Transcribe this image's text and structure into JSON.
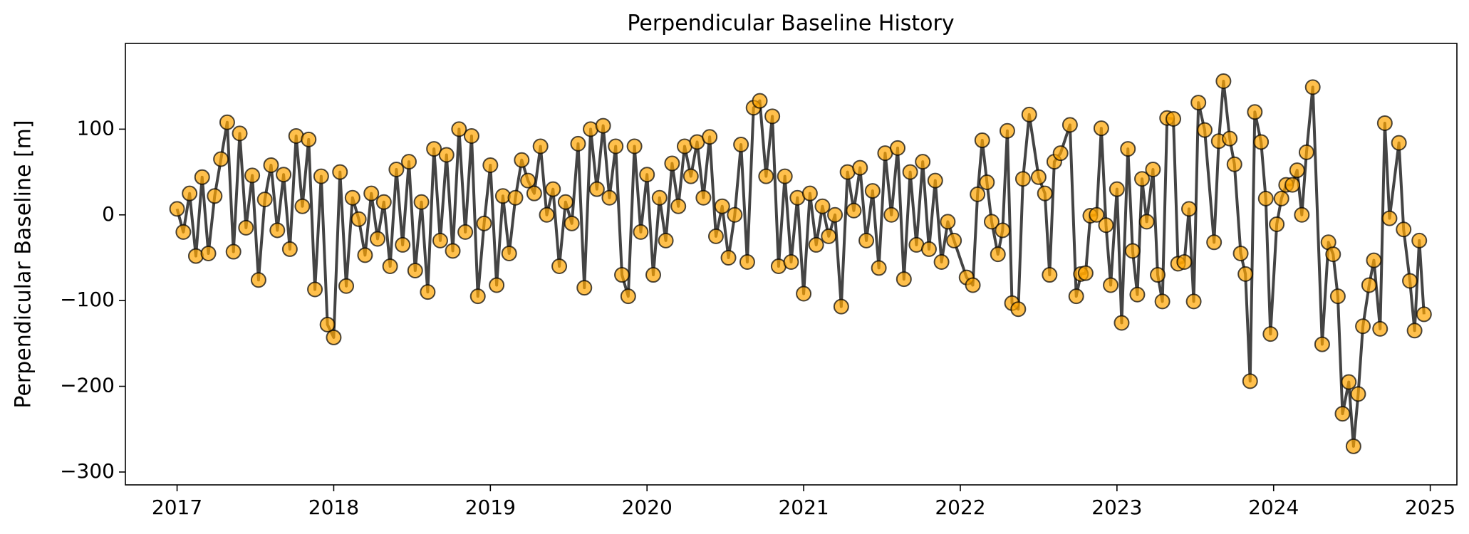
{
  "chart_data": {
    "type": "line",
    "title": "Perpendicular Baseline History",
    "ylabel": "Perpendicular Baseline [m]",
    "color": "#ffa500",
    "line_color": "#444444",
    "edge_color": "#000000",
    "xlim": [
      2016.67,
      2025.17
    ],
    "xticks": [
      2017,
      2018,
      2019,
      2020,
      2021,
      2022,
      2023,
      2024,
      2025
    ],
    "ylim": [
      -315,
      200
    ],
    "yticks": [
      {
        "value": -300,
        "label": "−300"
      },
      {
        "value": -200,
        "label": "−200"
      },
      {
        "value": -100,
        "label": "−100"
      },
      0,
      100
    ],
    "x": [
      2017.0,
      2017.04,
      2017.08,
      2017.12,
      2017.16,
      2017.2,
      2017.24,
      2017.28,
      2017.32,
      2017.36,
      2017.4,
      2017.44,
      2017.48,
      2017.52,
      2017.56,
      2017.6,
      2017.64,
      2017.68,
      2017.72,
      2017.76,
      2017.8,
      2017.84,
      2017.88,
      2017.92,
      2017.96,
      2018.0,
      2018.04,
      2018.08,
      2018.12,
      2018.16,
      2018.2,
      2018.24,
      2018.28,
      2018.32,
      2018.36,
      2018.4,
      2018.44,
      2018.48,
      2018.52,
      2018.56,
      2018.6,
      2018.64,
      2018.68,
      2018.72,
      2018.76,
      2018.8,
      2018.84,
      2018.88,
      2018.92,
      2018.96,
      2019.0,
      2019.04,
      2019.08,
      2019.12,
      2019.16,
      2019.2,
      2019.24,
      2019.28,
      2019.32,
      2019.36,
      2019.4,
      2019.44,
      2019.48,
      2019.52,
      2019.56,
      2019.6,
      2019.64,
      2019.68,
      2019.72,
      2019.76,
      2019.8,
      2019.84,
      2019.88,
      2019.92,
      2019.96,
      2020.0,
      2020.04,
      2020.08,
      2020.12,
      2020.16,
      2020.2,
      2020.24,
      2020.28,
      2020.32,
      2020.36,
      2020.4,
      2020.44,
      2020.48,
      2020.52,
      2020.56,
      2020.6,
      2020.64,
      2020.68,
      2020.72,
      2020.76,
      2020.8,
      2020.84,
      2020.88,
      2020.92,
      2020.96,
      2021.0,
      2021.04,
      2021.08,
      2021.12,
      2021.16,
      2021.2,
      2021.24,
      2021.28,
      2021.32,
      2021.36,
      2021.4,
      2021.44,
      2021.48,
      2021.52,
      2021.56,
      2021.6,
      2021.64,
      2021.68,
      2021.72,
      2021.76,
      2021.8,
      2021.84,
      2021.88,
      2021.92,
      2021.96,
      2022.04,
      2022.08,
      2022.11,
      2022.14,
      2022.17,
      2022.2,
      2022.24,
      2022.27,
      2022.3,
      2022.33,
      2022.37,
      2022.4,
      2022.44,
      2022.5,
      2022.54,
      2022.57,
      2022.6,
      2022.64,
      2022.7,
      2022.74,
      2022.77,
      2022.8,
      2022.83,
      2022.87,
      2022.9,
      2022.93,
      2022.96,
      2023.0,
      2023.03,
      2023.07,
      2023.1,
      2023.13,
      2023.16,
      2023.19,
      2023.23,
      2023.26,
      2023.29,
      2023.32,
      2023.36,
      2023.39,
      2023.43,
      2023.46,
      2023.49,
      2023.52,
      2023.56,
      2023.62,
      2023.65,
      2023.68,
      2023.72,
      2023.75,
      2023.79,
      2023.82,
      2023.85,
      2023.88,
      2023.92,
      2023.95,
      2023.98,
      2024.02,
      2024.05,
      2024.08,
      2024.12,
      2024.15,
      2024.18,
      2024.21,
      2024.25,
      2024.31,
      2024.35,
      2024.38,
      2024.41,
      2024.44,
      2024.48,
      2024.51,
      2024.54,
      2024.57,
      2024.61,
      2024.64,
      2024.68,
      2024.71,
      2024.74,
      2024.8,
      2024.83,
      2024.87,
      2024.9,
      2024.93,
      2024.96
    ],
    "values": [
      7,
      -20,
      25,
      -48,
      44,
      -45,
      22,
      65,
      108,
      -43,
      95,
      -15,
      46,
      -76,
      18,
      58,
      -18,
      47,
      -40,
      92,
      10,
      88,
      -87,
      45,
      -128,
      -143,
      50,
      -83,
      20,
      -5,
      -47,
      25,
      -28,
      15,
      -60,
      53,
      -35,
      62,
      -65,
      15,
      -90,
      77,
      -30,
      70,
      -42,
      100,
      -20,
      92,
      -95,
      -10,
      58,
      -82,
      22,
      -45,
      20,
      64,
      40,
      25,
      80,
      0,
      30,
      -60,
      15,
      -10,
      83,
      -85,
      100,
      30,
      104,
      20,
      80,
      -70,
      -95,
      80,
      -20,
      47,
      -70,
      20,
      -30,
      60,
      10,
      80,
      45,
      85,
      20,
      91,
      -25,
      10,
      -50,
      0,
      82,
      -55,
      125,
      133,
      45,
      115,
      -60,
      45,
      -55,
      20,
      -92,
      25,
      -35,
      10,
      -25,
      0,
      -107,
      50,
      5,
      55,
      -30,
      28,
      -62,
      72,
      0,
      78,
      -75,
      50,
      -35,
      62,
      -40,
      40,
      -55,
      -8,
      -30,
      -73,
      -82,
      24,
      87,
      38,
      -8,
      -46,
      -18,
      98,
      -103,
      -110,
      42,
      117,
      44,
      25,
      -70,
      62,
      72,
      105,
      -95,
      -69,
      -68,
      -1,
      0,
      101,
      -12,
      -82,
      30,
      -126,
      77,
      -42,
      -93,
      42,
      -8,
      53,
      -70,
      -101,
      113,
      112,
      -57,
      -55,
      7,
      -101,
      131,
      99,
      -32,
      86,
      156,
      89,
      59,
      -45,
      -69,
      -194,
      120,
      85,
      19,
      -139,
      -11,
      19,
      35,
      35,
      52,
      0,
      73,
      149,
      -151,
      -32,
      -46,
      -95,
      -232,
      -195,
      -270,
      -209,
      -130,
      -82,
      -53,
      -133,
      107,
      -4,
      84,
      -17,
      -77,
      -135,
      -30,
      -116
    ]
  }
}
